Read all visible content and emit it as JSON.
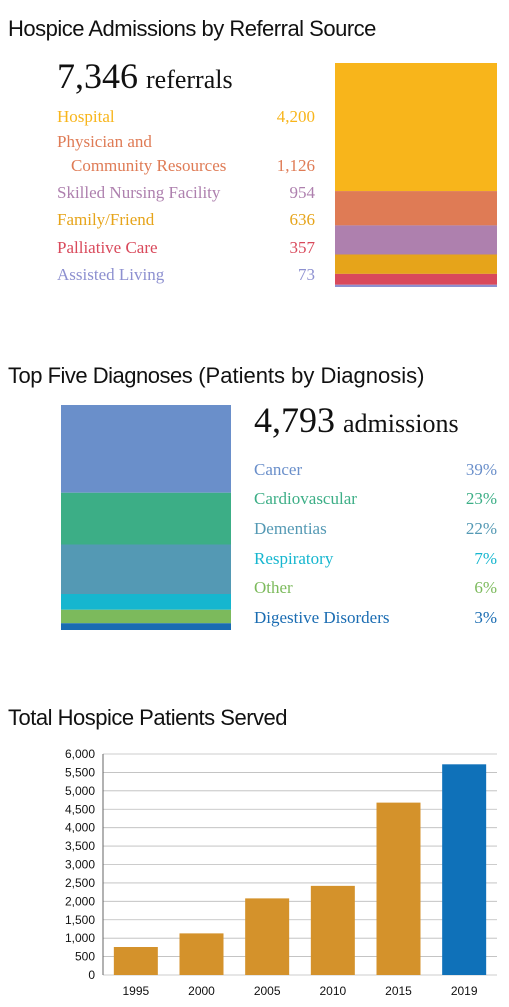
{
  "chart_data": [
    {
      "type": "stack",
      "title": "Hospice Admissions by Referral Source",
      "total": {
        "value": 7346,
        "label": "7,346"
      },
      "total_unit": "referrals",
      "categories": [
        "Hospital",
        "Physician and\nCommunity Resources",
        "Skilled Nursing Facility",
        "Family/Friend",
        "Palliative Care",
        "Assisted Living"
      ],
      "values": [
        4200,
        1126,
        954,
        636,
        357,
        73
      ],
      "value_labels": [
        "4,200",
        "1,126",
        "954",
        "636",
        "357",
        "73"
      ],
      "colors": [
        "#f8b51b",
        "#df7b55",
        "#ae80ae",
        "#e6a41a",
        "#d9495b",
        "#8d90d0"
      ]
    },
    {
      "type": "stack",
      "title": "Top Five Diagnoses",
      "subtitle": "(Patients by Diagnosis)",
      "total": {
        "value": 4793,
        "label": "4,793"
      },
      "total_unit": "admissions",
      "categories": [
        "Cancer",
        "Cardiovascular",
        "Dementias",
        "Respiratory",
        "Other",
        "Digestive Disorders"
      ],
      "values": [
        39,
        23,
        22,
        7,
        6,
        3
      ],
      "value_labels": [
        "39%",
        "23%",
        "22%",
        "7%",
        "6%",
        "3%"
      ],
      "colors": [
        "#6a8fca",
        "#3cae86",
        "#5499b4",
        "#16b6cf",
        "#7cba5c",
        "#1a6cb2"
      ]
    },
    {
      "type": "bar",
      "title": "Total Hospice Patients Served",
      "categories": [
        "1995",
        "2000",
        "2005",
        "2010",
        "2015",
        "2019"
      ],
      "values": [
        760,
        1130,
        2080,
        2420,
        4680,
        5720
      ],
      "colors": [
        "#d4922b",
        "#d4922b",
        "#d4922b",
        "#d4922b",
        "#d4922b",
        "#0f71b9"
      ],
      "ylim": [
        0,
        6000
      ],
      "yticks": [
        0,
        500,
        {
          "value": 1000,
          "label": "1,000"
        },
        {
          "value": 1500,
          "label": "1,500"
        },
        {
          "value": 2000,
          "label": "2,000"
        },
        {
          "value": 2500,
          "label": "2,500"
        },
        {
          "value": 3000,
          "label": "3,000"
        },
        {
          "value": 3500,
          "label": "3,500"
        },
        {
          "value": 4000,
          "label": "4,000"
        },
        {
          "value": 4500,
          "label": "4,500"
        },
        {
          "value": 5000,
          "label": "5,000"
        },
        {
          "value": 5500,
          "label": "5,500"
        },
        {
          "value": 6000,
          "label": "6,000"
        }
      ]
    }
  ]
}
